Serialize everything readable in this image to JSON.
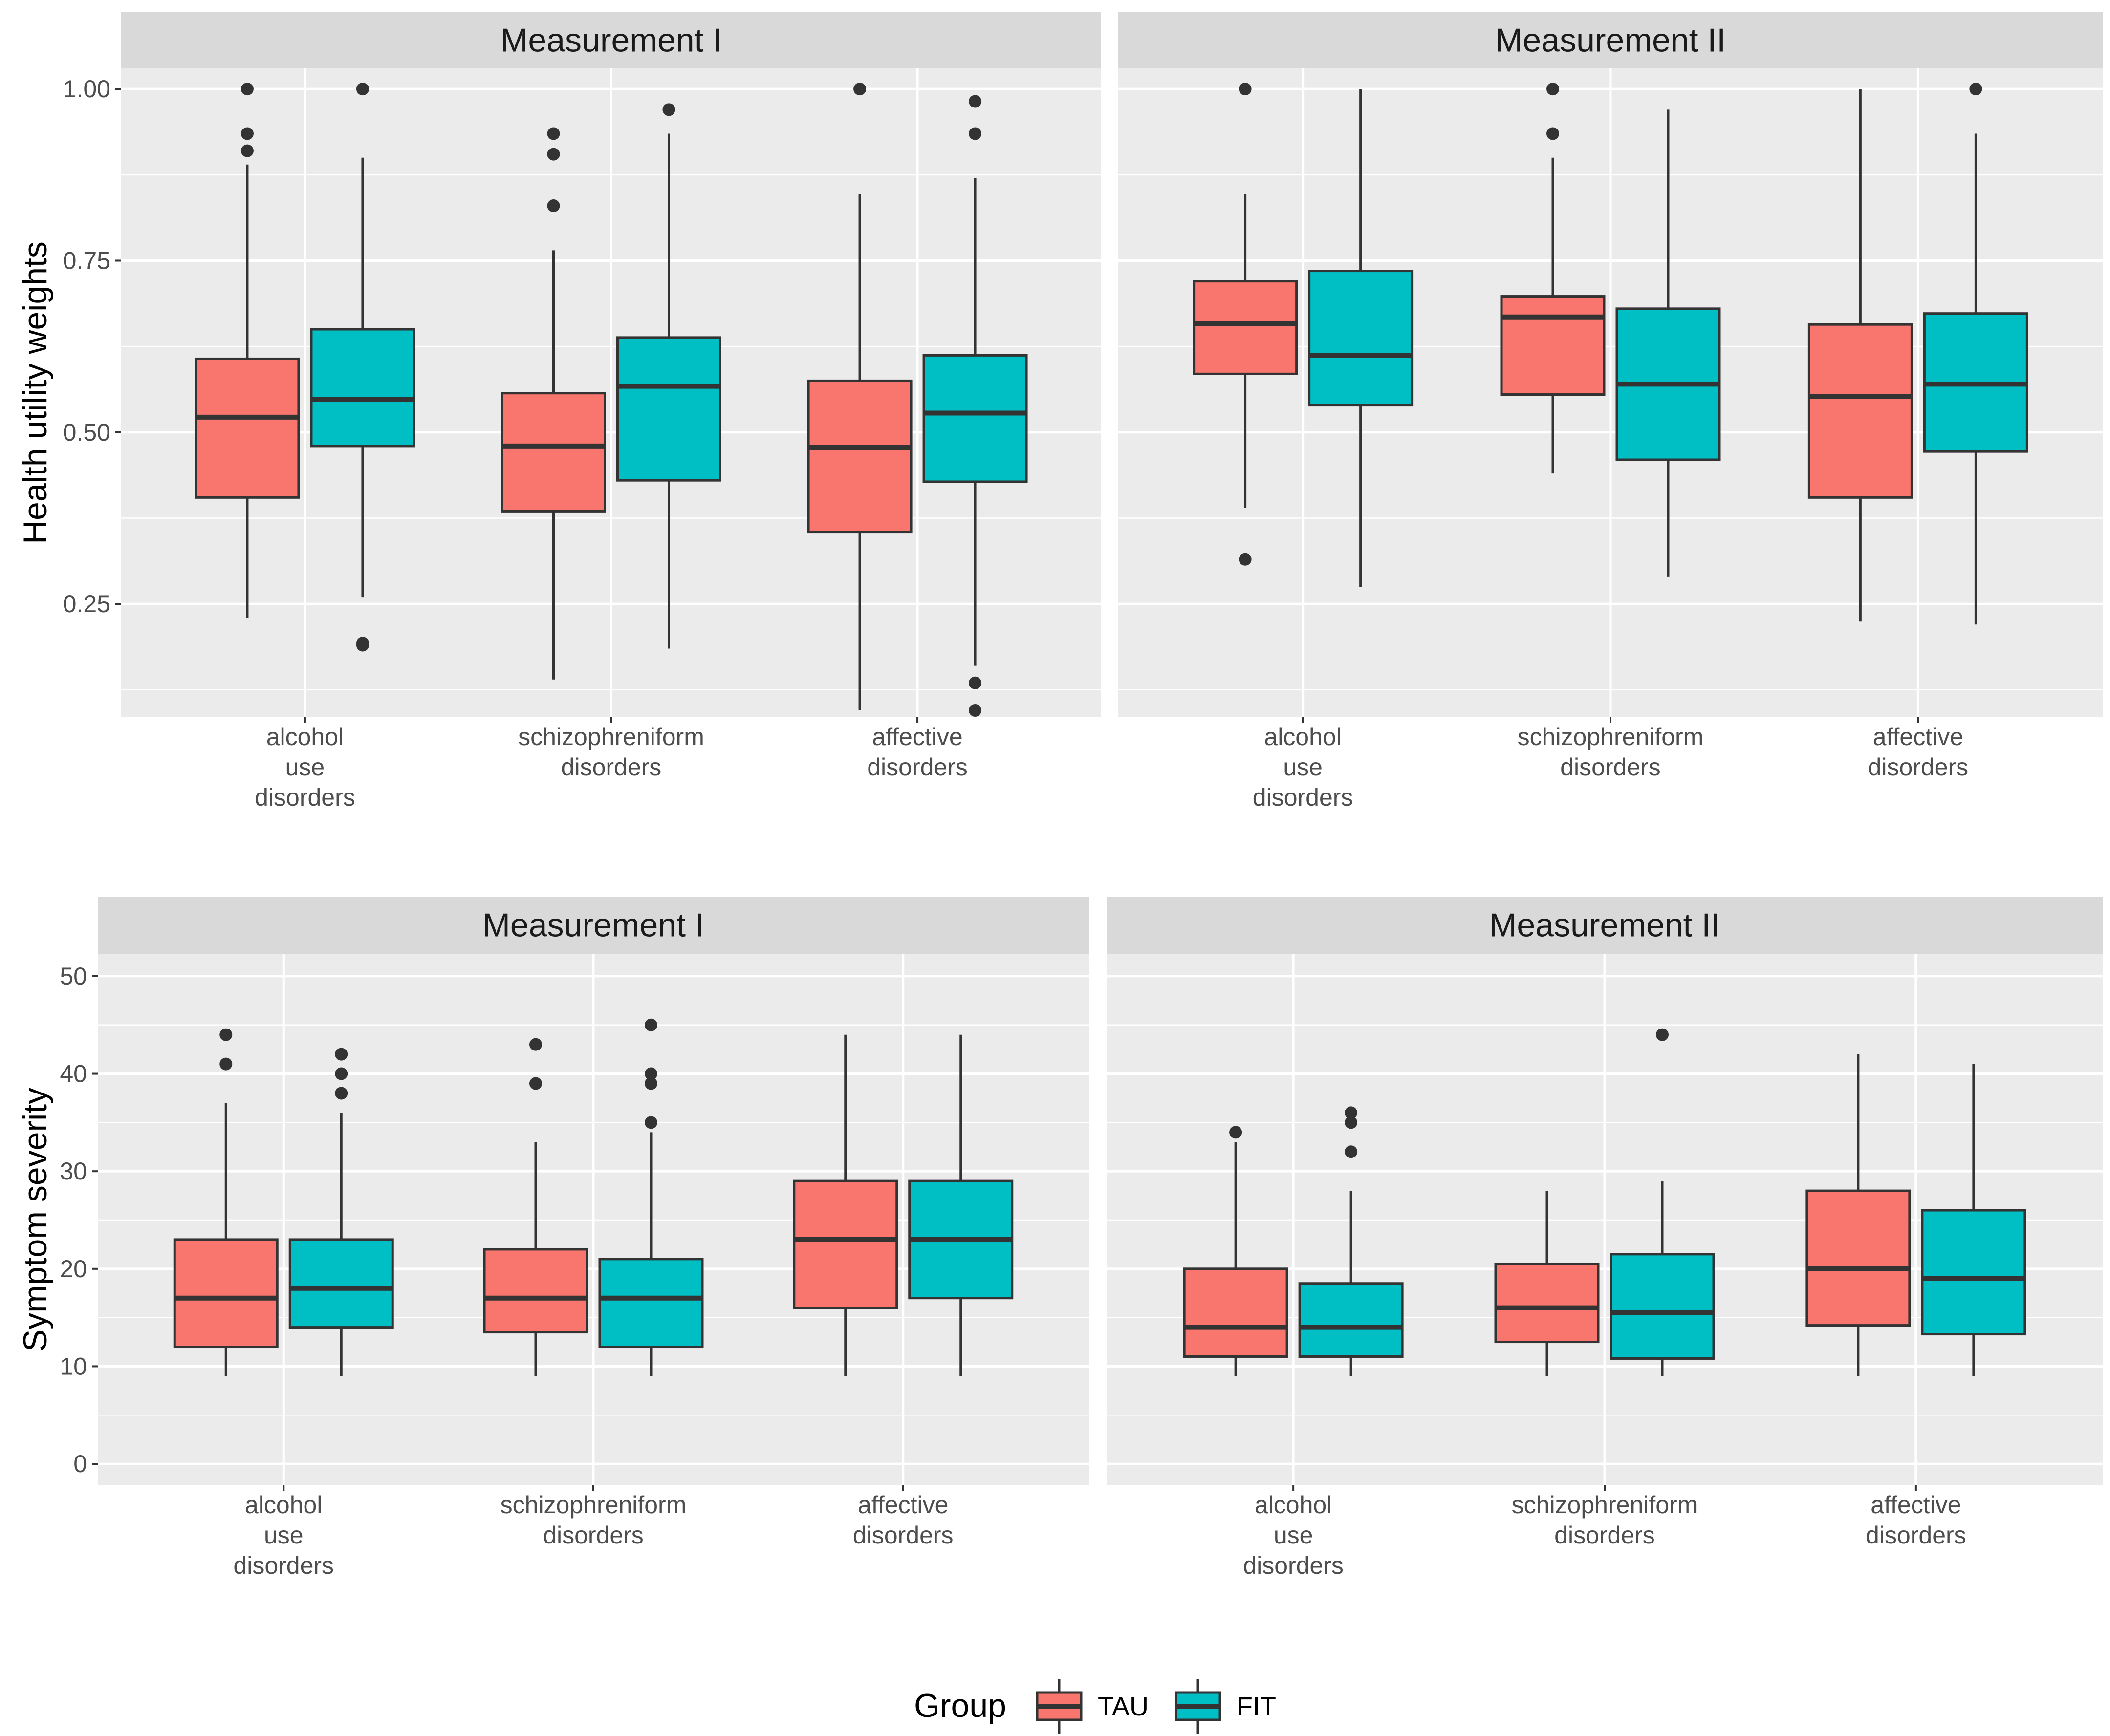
{
  "chart_data": [
    {
      "type": "boxplot",
      "ylabel": "Health utility weights",
      "ylim": [
        0.085,
        1.03
      ],
      "yticks": [
        0.25,
        0.5,
        0.75,
        1.0
      ],
      "ytick_labels": [
        "0.25",
        "0.50",
        "0.75",
        "1.00"
      ],
      "yminor": [
        0.125,
        0.375,
        0.625,
        0.875
      ],
      "categories": [
        [
          "alcohol",
          "use",
          "disorders"
        ],
        [
          "schizophreniform",
          "disorders"
        ],
        [
          "affective",
          "disorders"
        ]
      ],
      "facets": [
        {
          "title": "Measurement I",
          "groups": [
            [
              {
                "group": "TAU",
                "whislo": 0.23,
                "q1": 0.405,
                "med": 0.522,
                "q3": 0.607,
                "whishi": 0.89,
                "fliers": [
                  0.91,
                  0.935,
                  1.0
                ]
              },
              {
                "group": "FIT",
                "whislo": 0.26,
                "q1": 0.48,
                "med": 0.548,
                "q3": 0.65,
                "whishi": 0.9,
                "fliers": [
                  0.19,
                  0.193,
                  1.0
                ]
              }
            ],
            [
              {
                "group": "TAU",
                "whislo": 0.14,
                "q1": 0.385,
                "med": 0.48,
                "q3": 0.557,
                "whishi": 0.765,
                "fliers": [
                  0.83,
                  0.905,
                  0.935
                ]
              },
              {
                "group": "FIT",
                "whislo": 0.185,
                "q1": 0.43,
                "med": 0.567,
                "q3": 0.638,
                "whishi": 0.935,
                "fliers": [
                  0.97
                ]
              }
            ],
            [
              {
                "group": "TAU",
                "whislo": 0.095,
                "q1": 0.355,
                "med": 0.478,
                "q3": 0.575,
                "whishi": 0.847,
                "fliers": [
                  1.0
                ]
              },
              {
                "group": "FIT",
                "whislo": 0.16,
                "q1": 0.428,
                "med": 0.528,
                "q3": 0.612,
                "whishi": 0.87,
                "fliers": [
                  0.095,
                  0.135,
                  0.935,
                  0.982
                ]
              }
            ]
          ]
        },
        {
          "title": "Measurement II",
          "groups": [
            [
              {
                "group": "TAU",
                "whislo": 0.39,
                "q1": 0.585,
                "med": 0.658,
                "q3": 0.72,
                "whishi": 0.847,
                "fliers": [
                  0.315,
                  1.0
                ]
              },
              {
                "group": "FIT",
                "whislo": 0.275,
                "q1": 0.54,
                "med": 0.612,
                "q3": 0.735,
                "whishi": 1.0,
                "fliers": []
              }
            ],
            [
              {
                "group": "TAU",
                "whislo": 0.44,
                "q1": 0.555,
                "med": 0.668,
                "q3": 0.698,
                "whishi": 0.9,
                "fliers": [
                  0.935,
                  1.0
                ]
              },
              {
                "group": "FIT",
                "whislo": 0.29,
                "q1": 0.46,
                "med": 0.57,
                "q3": 0.68,
                "whishi": 0.97,
                "fliers": []
              }
            ],
            [
              {
                "group": "TAU",
                "whislo": 0.225,
                "q1": 0.405,
                "med": 0.552,
                "q3": 0.657,
                "whishi": 1.0,
                "fliers": []
              },
              {
                "group": "FIT",
                "whislo": 0.22,
                "q1": 0.472,
                "med": 0.57,
                "q3": 0.673,
                "whishi": 0.935,
                "fliers": [
                  1.0
                ]
              }
            ]
          ]
        }
      ]
    },
    {
      "type": "boxplot",
      "ylabel": "Symptom severity",
      "ylim": [
        -2.2,
        52.3
      ],
      "yticks": [
        0,
        10,
        20,
        30,
        40,
        50
      ],
      "ytick_labels": [
        "0",
        "10",
        "20",
        "30",
        "40",
        "50"
      ],
      "yminor": [
        5,
        15,
        25,
        35,
        45
      ],
      "categories": [
        [
          "alcohol",
          "use",
          "disorders"
        ],
        [
          "schizophreniform",
          "disorders"
        ],
        [
          "affective",
          "disorders"
        ]
      ],
      "facets": [
        {
          "title": "Measurement I",
          "groups": [
            [
              {
                "group": "TAU",
                "whislo": 9,
                "q1": 12,
                "med": 17,
                "q3": 23,
                "whishi": 37,
                "fliers": [
                  41,
                  44
                ]
              },
              {
                "group": "FIT",
                "whislo": 9,
                "q1": 14,
                "med": 18,
                "q3": 23,
                "whishi": 36,
                "fliers": [
                  38,
                  40,
                  42
                ]
              }
            ],
            [
              {
                "group": "TAU",
                "whislo": 9,
                "q1": 13.5,
                "med": 17,
                "q3": 22,
                "whishi": 33,
                "fliers": [
                  39,
                  43
                ]
              },
              {
                "group": "FIT",
                "whislo": 9,
                "q1": 12,
                "med": 17,
                "q3": 21,
                "whishi": 34,
                "fliers": [
                  35,
                  39,
                  40,
                  45
                ]
              }
            ],
            [
              {
                "group": "TAU",
                "whislo": 9,
                "q1": 16,
                "med": 23,
                "q3": 29,
                "whishi": 44,
                "fliers": []
              },
              {
                "group": "FIT",
                "whislo": 9,
                "q1": 17,
                "med": 23,
                "q3": 29,
                "whishi": 44,
                "fliers": []
              }
            ]
          ]
        },
        {
          "title": "Measurement II",
          "groups": [
            [
              {
                "group": "TAU",
                "whislo": 9,
                "q1": 11,
                "med": 14,
                "q3": 20,
                "whishi": 33,
                "fliers": [
                  34
                ]
              },
              {
                "group": "FIT",
                "whislo": 9,
                "q1": 11,
                "med": 14,
                "q3": 18.5,
                "whishi": 28,
                "fliers": [
                  32,
                  35,
                  36
                ]
              }
            ],
            [
              {
                "group": "TAU",
                "whislo": 9,
                "q1": 12.5,
                "med": 16,
                "q3": 20.5,
                "whishi": 28,
                "fliers": []
              },
              {
                "group": "FIT",
                "whislo": 9,
                "q1": 10.8,
                "med": 15.5,
                "q3": 21.5,
                "whishi": 29,
                "fliers": [
                  44
                ]
              }
            ],
            [
              {
                "group": "TAU",
                "whislo": 9,
                "q1": 14.2,
                "med": 20,
                "q3": 28,
                "whishi": 42,
                "fliers": []
              },
              {
                "group": "FIT",
                "whislo": 9,
                "q1": 13.3,
                "med": 19,
                "q3": 26,
                "whishi": 41,
                "fliers": []
              }
            ]
          ]
        }
      ]
    }
  ],
  "legend": {
    "title": "Group",
    "items": [
      {
        "label": "TAU",
        "color": "#F8766D"
      },
      {
        "label": "FIT",
        "color": "#00BFC4"
      }
    ]
  }
}
